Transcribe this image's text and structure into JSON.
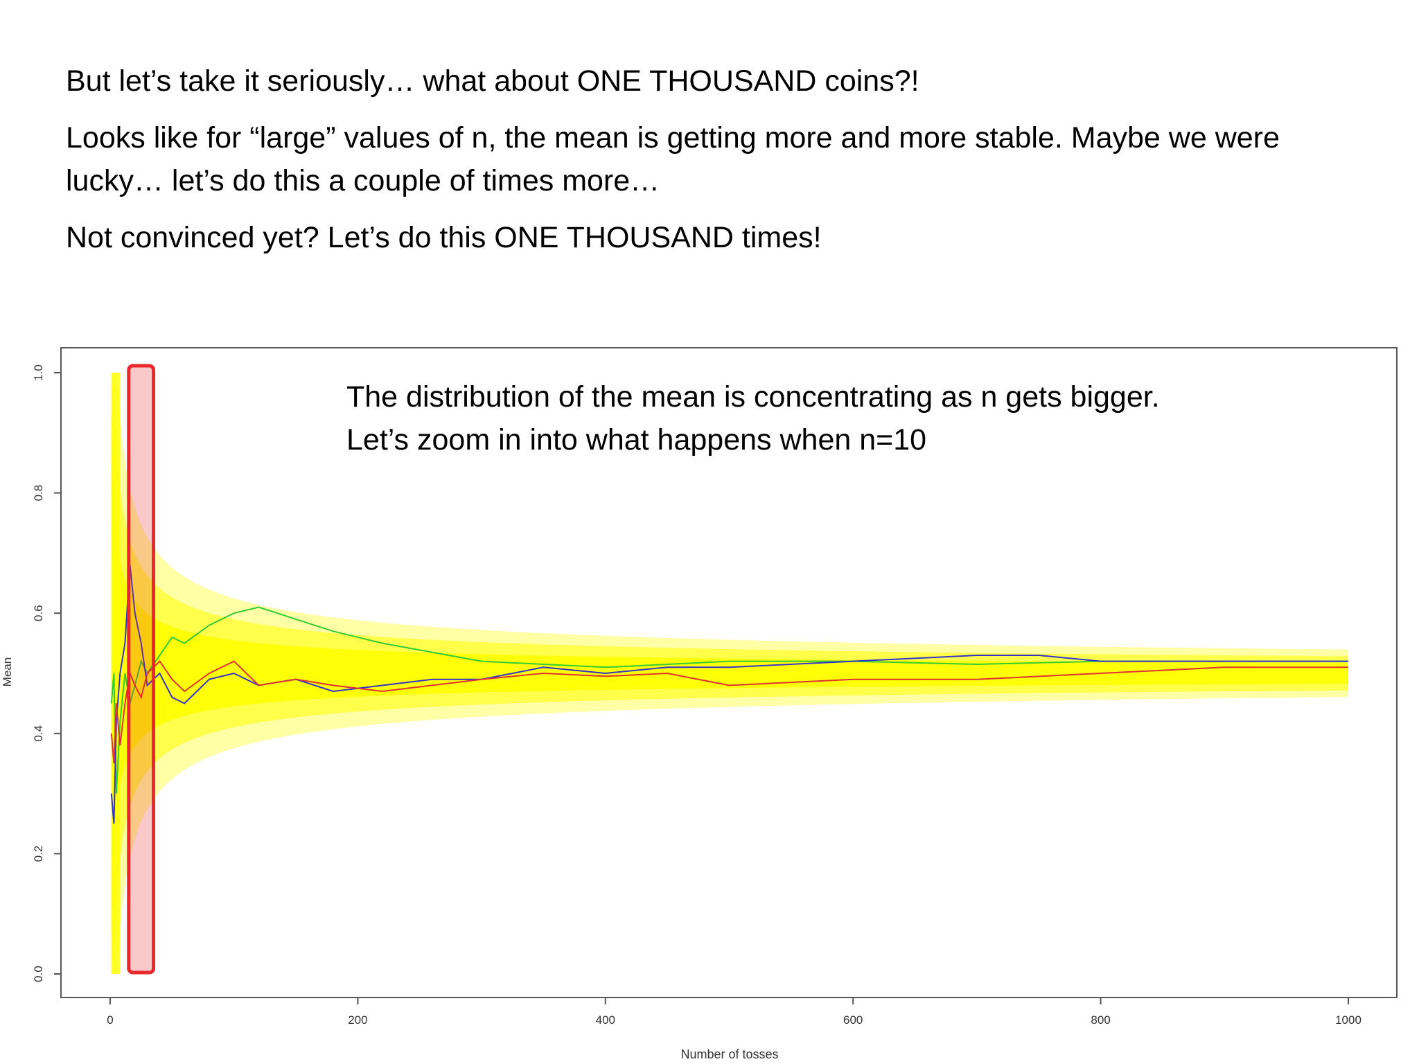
{
  "slide": {
    "line1": "But let’s take it seriously… what about ONE THOUSAND coins?!",
    "line2": "Looks like for “large” values of n, the mean is getting more and more stable. Maybe we were lucky… let’s do this a couple of times more…",
    "line3": "Not convinced yet? Let’s do this ONE THOUSAND times!"
  },
  "annotation": {
    "line1": "The distribution of the mean is concentrating as n gets bigger.",
    "line2": "Let’s zoom in into what happens when n=10"
  },
  "chart_data": {
    "type": "line",
    "xlabel": "Number of tosses",
    "ylabel": "Mean",
    "xlim": [
      0,
      1000
    ],
    "ylim": [
      0,
      1
    ],
    "x_ticks": [
      "0",
      "200",
      "400",
      "600",
      "800",
      "1000"
    ],
    "y_ticks": [
      "0.0",
      "0.2",
      "0.4",
      "0.6",
      "0.8",
      "1.0"
    ],
    "grid": false,
    "highlight_x_range": [
      15,
      35
    ],
    "highlight_color": "#e8282c",
    "band_color": "#ffff00",
    "series": [
      {
        "color": "#33cc33",
        "x": [
          1,
          3,
          5,
          8,
          12,
          16,
          20,
          25,
          30,
          40,
          50,
          60,
          80,
          100,
          120,
          150,
          180,
          220,
          260,
          300,
          350,
          400,
          450,
          500,
          600,
          700,
          800,
          900,
          1000
        ],
        "y": [
          0.45,
          0.5,
          0.3,
          0.42,
          0.5,
          0.45,
          0.48,
          0.52,
          0.5,
          0.53,
          0.56,
          0.55,
          0.58,
          0.6,
          0.61,
          0.59,
          0.57,
          0.55,
          0.535,
          0.52,
          0.515,
          0.51,
          0.515,
          0.52,
          0.52,
          0.515,
          0.52,
          0.52,
          0.52
        ]
      },
      {
        "color": "#3333cc",
        "x": [
          1,
          3,
          5,
          8,
          12,
          16,
          20,
          25,
          30,
          40,
          50,
          60,
          80,
          100,
          120,
          150,
          180,
          220,
          260,
          300,
          350,
          400,
          450,
          500,
          600,
          700,
          750,
          800,
          900,
          1000
        ],
        "y": [
          0.3,
          0.25,
          0.42,
          0.5,
          0.55,
          0.68,
          0.6,
          0.55,
          0.48,
          0.5,
          0.46,
          0.45,
          0.49,
          0.5,
          0.48,
          0.49,
          0.47,
          0.48,
          0.49,
          0.49,
          0.51,
          0.5,
          0.51,
          0.51,
          0.52,
          0.53,
          0.53,
          0.52,
          0.52,
          0.52
        ]
      },
      {
        "color": "#dd3333",
        "x": [
          1,
          3,
          5,
          8,
          12,
          16,
          20,
          25,
          30,
          40,
          50,
          60,
          80,
          100,
          120,
          150,
          180,
          220,
          260,
          300,
          350,
          400,
          450,
          500,
          600,
          700,
          800,
          900,
          1000
        ],
        "y": [
          0.4,
          0.35,
          0.45,
          0.38,
          0.45,
          0.5,
          0.48,
          0.46,
          0.5,
          0.52,
          0.49,
          0.47,
          0.5,
          0.52,
          0.48,
          0.49,
          0.48,
          0.47,
          0.48,
          0.49,
          0.5,
          0.495,
          0.5,
          0.48,
          0.49,
          0.49,
          0.5,
          0.51,
          0.51
        ]
      }
    ]
  }
}
